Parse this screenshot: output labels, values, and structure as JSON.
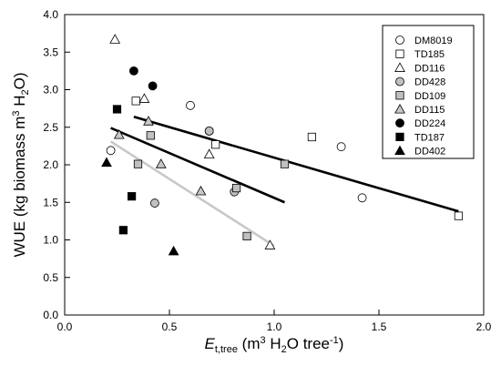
{
  "chart_data": {
    "type": "scatter",
    "xlabel": "Et,tree (m3 H2O tree-1)",
    "ylabel": "WUE (kg biomass m3 H2O)",
    "xlim": [
      0.0,
      2.0
    ],
    "ylim": [
      0.0,
      4.0
    ],
    "x_ticks": [
      "0.0",
      "0.5",
      "1.0",
      "1.5",
      "2.0"
    ],
    "y_ticks": [
      "0.0",
      "0.5",
      "1.0",
      "1.5",
      "2.0",
      "2.5",
      "3.0",
      "3.5",
      "4.0"
    ],
    "legend_position": "top-right",
    "series": [
      {
        "name": "DM8019",
        "marker": "circle",
        "fill": "#ffffff",
        "points": [
          [
            0.22,
            2.19
          ],
          [
            0.6,
            2.79
          ],
          [
            0.69,
            2.45
          ],
          [
            1.32,
            2.24
          ],
          [
            1.42,
            1.56
          ]
        ]
      },
      {
        "name": "TD185",
        "marker": "square",
        "fill": "#ffffff",
        "points": [
          [
            0.34,
            2.85
          ],
          [
            0.72,
            2.27
          ],
          [
            1.18,
            2.37
          ],
          [
            1.88,
            1.32
          ]
        ]
      },
      {
        "name": "DD116",
        "marker": "triangle",
        "fill": "#ffffff",
        "points": [
          [
            0.24,
            3.67
          ],
          [
            0.38,
            2.88
          ],
          [
            0.69,
            2.14
          ],
          [
            0.98,
            0.93
          ]
        ]
      },
      {
        "name": "DD428",
        "marker": "circle",
        "fill": "#c0c0c0",
        "points": [
          [
            0.43,
            1.49
          ],
          [
            0.81,
            1.64
          ],
          [
            0.69,
            2.45
          ]
        ]
      },
      {
        "name": "DD109",
        "marker": "square",
        "fill": "#c0c0c0",
        "points": [
          [
            0.35,
            2.01
          ],
          [
            0.41,
            2.39
          ],
          [
            0.82,
            1.69
          ],
          [
            0.87,
            1.05
          ],
          [
            1.05,
            2.01
          ]
        ]
      },
      {
        "name": "DD115",
        "marker": "triangle",
        "fill": "#c8c8c8",
        "points": [
          [
            0.26,
            2.4
          ],
          [
            0.4,
            2.58
          ],
          [
            0.46,
            2.01
          ],
          [
            0.65,
            1.65
          ]
        ]
      },
      {
        "name": "DD224",
        "marker": "circle",
        "fill": "#000000",
        "points": [
          [
            0.33,
            3.25
          ],
          [
            0.42,
            3.05
          ]
        ]
      },
      {
        "name": "TD187",
        "marker": "square",
        "fill": "#000000",
        "points": [
          [
            0.25,
            2.74
          ],
          [
            0.32,
            1.58
          ],
          [
            0.28,
            1.13
          ]
        ]
      },
      {
        "name": "DD402",
        "marker": "triangle",
        "fill": "#000000",
        "points": [
          [
            0.2,
            2.03
          ],
          [
            0.52,
            0.85
          ]
        ]
      }
    ],
    "regression_lines": [
      {
        "color": "#000000",
        "x": [
          0.33,
          1.88
        ],
        "y": [
          2.64,
          1.38
        ]
      },
      {
        "color": "#000000",
        "x": [
          0.22,
          1.05
        ],
        "y": [
          2.49,
          1.5
        ]
      },
      {
        "color": "#c8c8c8",
        "x": [
          0.22,
          1.0
        ],
        "y": [
          2.31,
          0.92
        ]
      }
    ]
  }
}
